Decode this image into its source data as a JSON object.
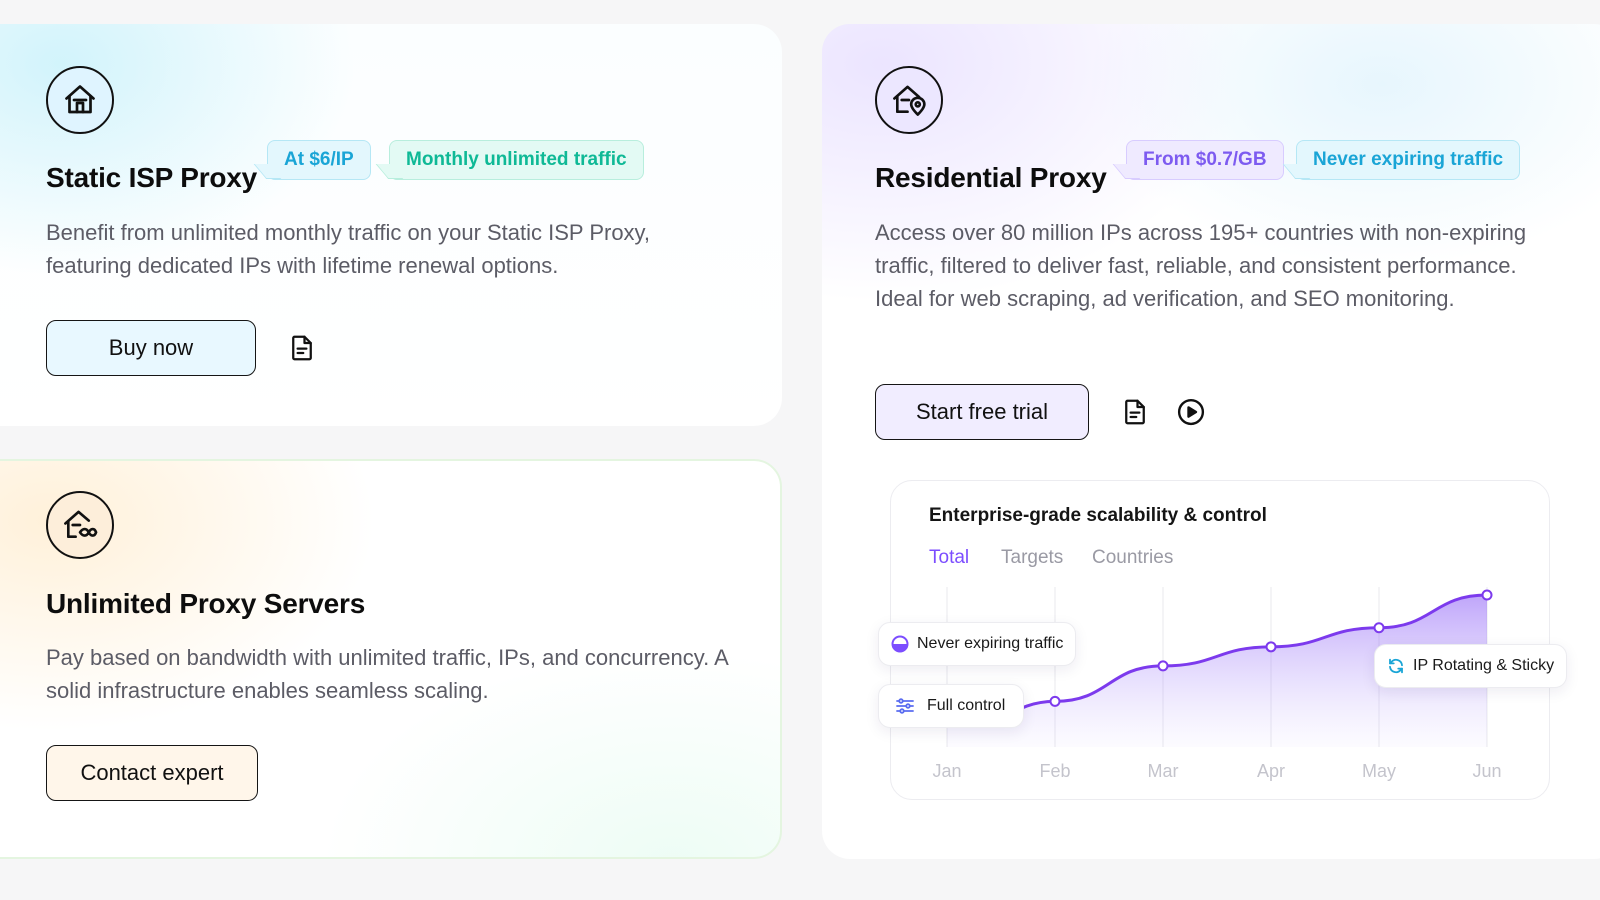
{
  "static_isp": {
    "title": "Static ISP Proxy",
    "tags": [
      "At $6/IP",
      "Monthly unlimited traffic"
    ],
    "description": "Benefit from unlimited monthly traffic on your Static ISP Proxy, featuring dedicated IPs with lifetime renewal options.",
    "button_label": "Buy now",
    "icon": "house-icon"
  },
  "unlimited": {
    "title": "Unlimited Proxy Servers",
    "description": "Pay based on bandwidth with unlimited traffic, IPs, and concurrency. A solid infrastructure enables seamless scaling.",
    "button_label": "Contact expert",
    "icon": "house-infinity-icon"
  },
  "residential": {
    "title": "Residential Proxy",
    "tags": [
      "From $0.7/GB",
      "Never expiring traffic"
    ],
    "description": "Access over 80 million IPs across 195+ countries with non-expiring traffic, filtered to deliver fast, reliable, and consistent performance. Ideal for web scraping, ad verification, and SEO monitoring.",
    "button_label": "Start free trial",
    "icon": "house-location-icon"
  },
  "chart": {
    "title": "Enterprise-grade scalability & control",
    "tabs": [
      "Total",
      "Targets",
      "Countries"
    ],
    "active_tab": "Total",
    "badges": {
      "never_expiring": "Never expiring traffic",
      "full_control": "Full control",
      "ip_rotating": "IP Rotating & Sticky"
    }
  },
  "colors": {
    "accent_purple": "#7c4dff",
    "tag_cyan": "#1aa5d6",
    "tag_mint": "#0fb996"
  },
  "chart_data": {
    "type": "area",
    "categories": [
      "Jan",
      "Feb",
      "Mar",
      "Apr",
      "May",
      "Jun"
    ],
    "series": [
      {
        "values": [
          20,
          32,
          58,
          72,
          86,
          110
        ]
      }
    ],
    "grid": "vertical",
    "ylabel": "",
    "xlabel": ""
  }
}
